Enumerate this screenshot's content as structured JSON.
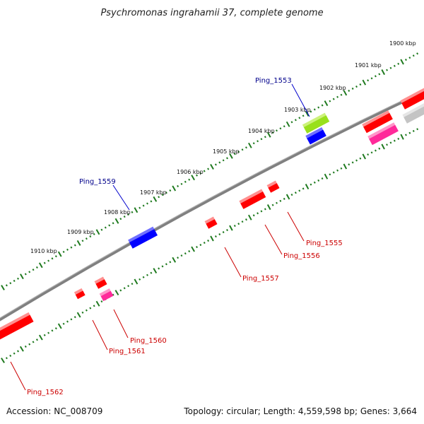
{
  "title": "Psychromonas ingrahamii 37, complete genome",
  "footer": {
    "accession": "Accession: NC_008709",
    "summary": "Topology: circular; Length: 4,559,598 bp; Genes: 3,664"
  },
  "colors": {
    "backbone": "#808080",
    "ruler": "#1f7a1f",
    "red_gene": "#ff0000",
    "blue_gene": "#0000ff",
    "pink_gene": "#ff2a9a",
    "lime_gene": "#99e01c",
    "gray_gene": "#c4c4c4",
    "label_red": "#cc0000",
    "label_blue": "#00008b"
  },
  "ruler_labels": [
    "1900 kbp",
    "1901 kbp",
    "1902 kbp",
    "1903 kbp",
    "1904 kbp",
    "1905 kbp",
    "1906 kbp",
    "1907 kbp",
    "1908 kbp",
    "1909 kbp",
    "1910 kbp"
  ],
  "gene_labels": [
    {
      "name": "Ping_1553",
      "color": "blue"
    },
    {
      "name": "Ping_1555",
      "color": "red"
    },
    {
      "name": "Ping_1556",
      "color": "red"
    },
    {
      "name": "Ping_1557",
      "color": "red"
    },
    {
      "name": "Ping_1559",
      "color": "blue"
    },
    {
      "name": "Ping_1560",
      "color": "red"
    },
    {
      "name": "Ping_1561",
      "color": "red"
    },
    {
      "name": "Ping_1562",
      "color": "red"
    }
  ]
}
